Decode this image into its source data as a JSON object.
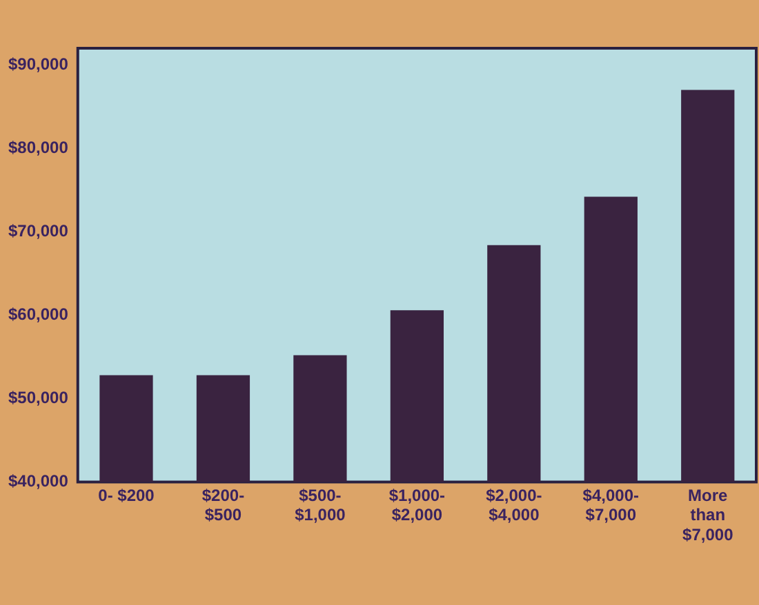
{
  "chart_data": {
    "type": "bar",
    "categories": [
      "0- $200",
      "$200- $500",
      "$500- $1,000",
      "$1,000- $2,000",
      "$2,000- $4,000",
      "$4,000- $7,000",
      "More than $7,000"
    ],
    "values": [
      52800,
      52800,
      55200,
      60600,
      68400,
      74200,
      87000
    ],
    "color": "#3a2340",
    "ylim": [
      40000,
      92000
    ],
    "yticks": [
      {
        "value": 40000,
        "label": "$40,000"
      },
      {
        "value": 50000,
        "label": "$50,000"
      },
      {
        "value": 60000,
        "label": "$60,000"
      },
      {
        "value": 70000,
        "label": "$70,000"
      },
      {
        "value": 80000,
        "label": "$80,000"
      },
      {
        "value": 90000,
        "label": "$90,000"
      }
    ],
    "grid": false,
    "legend": false
  }
}
